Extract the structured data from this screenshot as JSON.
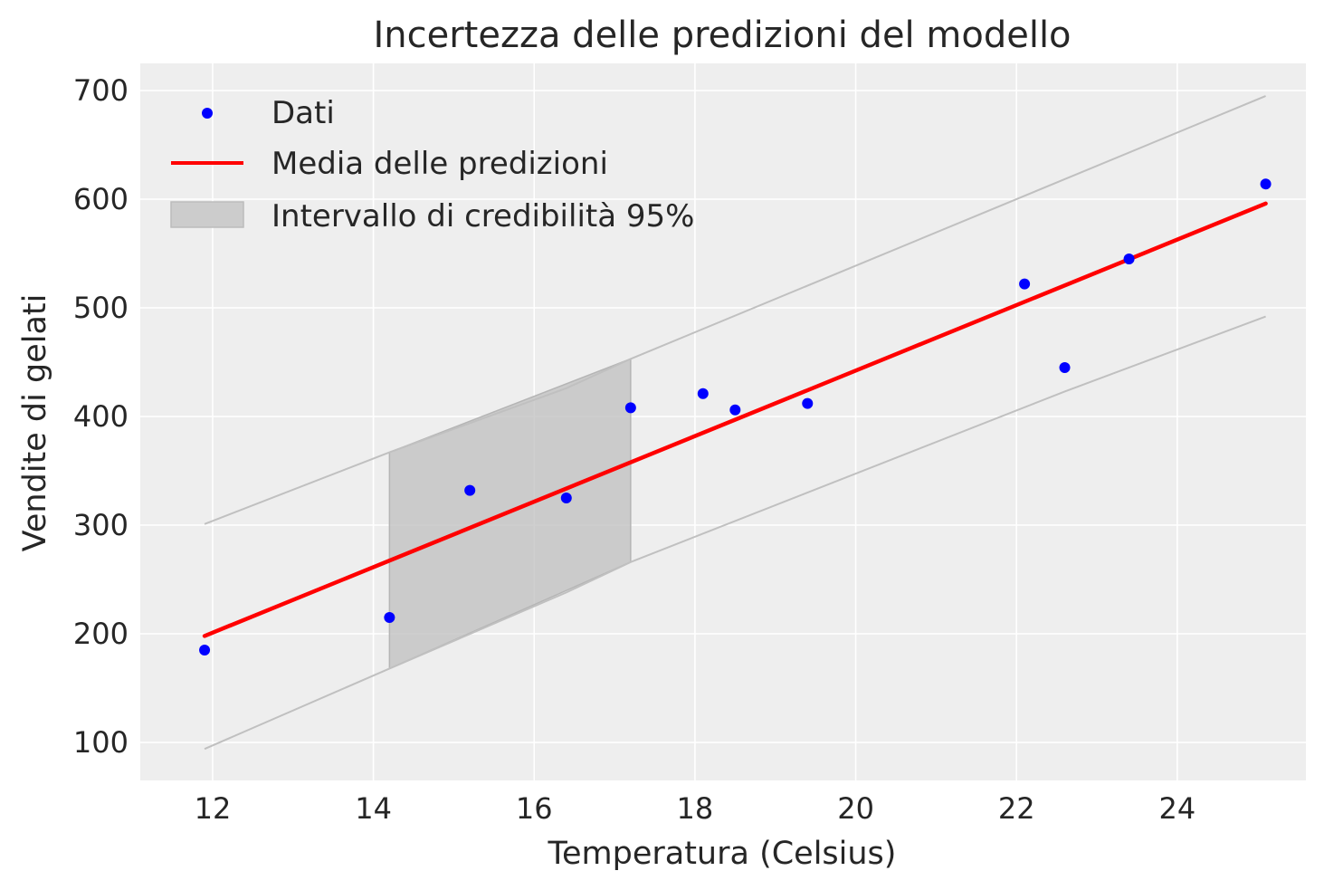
{
  "chart_data": {
    "type": "scatter",
    "title": "Incertezza delle predizioni del modello",
    "xlabel": "Temperatura (Celsius)",
    "ylabel": "Vendite di gelati",
    "xlim": [
      11.1,
      25.6
    ],
    "ylim": [
      65,
      725
    ],
    "xticks": [
      12,
      14,
      16,
      18,
      20,
      22,
      24
    ],
    "yticks": [
      100,
      200,
      300,
      400,
      500,
      600,
      700
    ],
    "grid": true,
    "legend_position": "top-left",
    "legend": {
      "scatter_label": "Dati",
      "line_label": "Media delle predizioni",
      "band_label": "Intervallo di credibilità 95%"
    },
    "colors": {
      "points": "#0000ff",
      "mean_line": "#ff0000",
      "band_fill": "#bfbfbf",
      "band_edge": "#c0c0c0",
      "background": "#eeeeee",
      "grid": "#ffffff"
    },
    "points": {
      "x": [
        11.9,
        14.2,
        15.2,
        16.4,
        17.2,
        18.1,
        18.5,
        19.4,
        22.1,
        22.6,
        23.4,
        25.1
      ],
      "y": [
        185,
        215,
        332,
        325,
        408,
        421,
        406,
        412,
        522,
        445,
        545,
        614
      ]
    },
    "mean_line": {
      "x": [
        11.9,
        25.1
      ],
      "y": [
        198,
        596
      ]
    },
    "band_visible": {
      "x": [
        14.2,
        17.2
      ],
      "lower": [
        168,
        266
      ],
      "upper": [
        367,
        453
      ]
    },
    "band_upper_edge": {
      "x": [
        11.9,
        14.2,
        16.4,
        17.2,
        25.1
      ],
      "y": [
        301,
        367,
        426,
        453,
        695
      ]
    },
    "band_lower_edge": {
      "x": [
        11.9,
        14.2,
        16.4,
        17.2,
        22.6,
        25.1
      ],
      "y": [
        94,
        168,
        238,
        266,
        423,
        492
      ]
    }
  }
}
